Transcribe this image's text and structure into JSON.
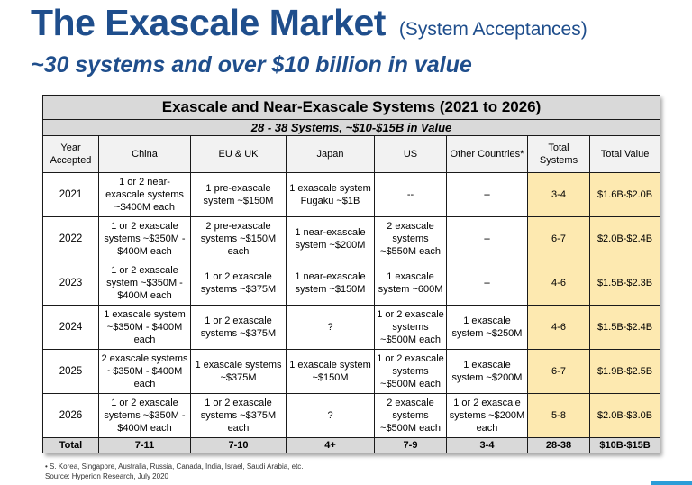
{
  "heading": {
    "title": "The Exascale Market",
    "title_note": "(System Acceptances)",
    "subtitle": "~30 systems and over $10 billion in value"
  },
  "table": {
    "title": "Exascale and Near-Exascale Systems (2021 to 2026)",
    "subtitle": "28 - 38 Systems, ~$10-$15B in Value",
    "headers": [
      "Year Accepted",
      "China",
      "EU & UK",
      "Japan",
      "US",
      "Other Countries*",
      "Total Systems",
      "Total Value"
    ],
    "rows": [
      {
        "year": "2021",
        "china": "1 or 2 near-exascale systems ~$400M each",
        "eu": "1 pre-exascale system ~$150M",
        "japan": "1 exascale system Fugaku ~$1B",
        "us": "--",
        "other": "--",
        "systems": "3-4",
        "value": "$1.6B-$2.0B"
      },
      {
        "year": "2022",
        "china": "1 or 2 exascale systems ~$350M - $400M each",
        "eu": "2 pre-exascale systems ~$150M each",
        "japan": "1 near-exascale system ~$200M",
        "us": "2 exascale systems ~$550M each",
        "other": "--",
        "systems": "6-7",
        "value": "$2.0B-$2.4B"
      },
      {
        "year": "2023",
        "china": "1 or 2 exascale system ~$350M - $400M each",
        "eu": "1 or 2 exascale systems ~$375M",
        "japan": "1 near-exascale system ~$150M",
        "us": "1 exascale system ~600M",
        "other": "--",
        "systems": "4-6",
        "value": "$1.5B-$2.3B"
      },
      {
        "year": "2024",
        "china": "1 exascale system ~$350M - $400M each",
        "eu": "1 or 2 exascale systems ~$375M",
        "japan": "?",
        "us": "1 or 2 exascale systems ~$500M each",
        "other": "1 exascale system ~$250M",
        "systems": "4-6",
        "value": "$1.5B-$2.4B"
      },
      {
        "year": "2025",
        "china": "2 exascale systems ~$350M - $400M each",
        "eu": "1 exascale systems ~$375M",
        "japan": "1 exascale system ~$150M",
        "us": "1 or 2 exascale systems ~$500M each",
        "other": "1 exascale system ~$200M",
        "systems": "6-7",
        "value": "$1.9B-$2.5B"
      },
      {
        "year": "2026",
        "china": "1 or 2 exascale systems ~$350M - $400M each",
        "eu": "1 or 2 exascale systems ~$375M each",
        "japan": "?",
        "us": "2 exascale systems ~$500M each",
        "other": "1 or 2 exascale systems ~$200M each",
        "systems": "5-8",
        "value": "$2.0B-$3.0B"
      }
    ],
    "total": {
      "label": "Total",
      "china": "7-11",
      "eu": "7-10",
      "japan": "4+",
      "us": "7-9",
      "other": "3-4",
      "systems": "28-38",
      "value": "$10B-$15B"
    }
  },
  "footnote": {
    "line1": "•  S. Korea, Singapore, Australia, Russia, Canada, India, Israel, Saudi Arabia, etc.",
    "line2": "Source: Hyperion Research, July 2020"
  },
  "colors": {
    "title": "#1f4e8c",
    "header_gray": "#d9d9d9",
    "highlight": "#fde9b0",
    "accent_bar": "#2b9dd8"
  }
}
